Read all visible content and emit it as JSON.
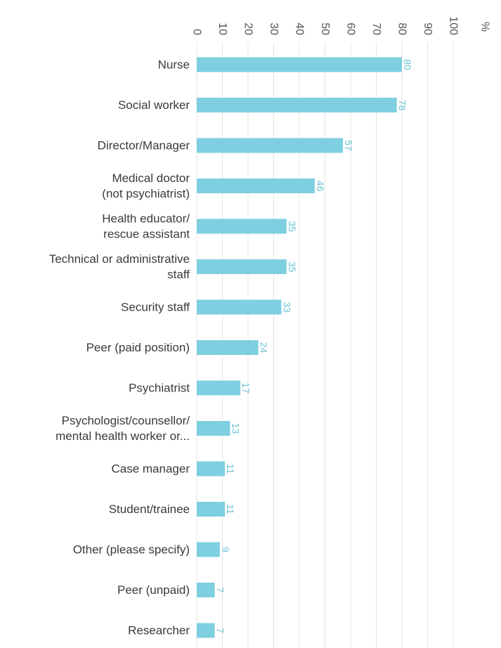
{
  "chart_data": {
    "type": "bar",
    "orientation": "horizontal",
    "title": "",
    "xlabel": "",
    "ylabel": "",
    "unit_label": "%",
    "xlim": [
      0,
      100
    ],
    "xticks": [
      0,
      10,
      20,
      30,
      40,
      50,
      60,
      70,
      80,
      90,
      100
    ],
    "grid": true,
    "legend": "none",
    "bar_color": "#7ecfe0",
    "label_color": "#6cc3d6",
    "categories": [
      [
        "Nurse"
      ],
      [
        "Social worker"
      ],
      [
        "Director/Manager"
      ],
      [
        "Medical doctor",
        "(not psychiatrist)"
      ],
      [
        "Health educator/",
        "rescue assistant"
      ],
      [
        "Technical or administrative",
        "staff"
      ],
      [
        "Security staff"
      ],
      [
        "Peer (paid position)"
      ],
      [
        "Psychiatrist"
      ],
      [
        "Psychologist/counsellor/",
        "mental health worker or..."
      ],
      [
        "Case manager"
      ],
      [
        "Student/trainee"
      ],
      [
        "Other (please specify)"
      ],
      [
        "Peer (unpaid)"
      ],
      [
        "Researcher"
      ]
    ],
    "values": [
      80,
      78,
      57,
      46,
      35,
      35,
      33,
      24,
      17,
      13,
      11,
      11,
      9,
      7,
      7
    ]
  }
}
